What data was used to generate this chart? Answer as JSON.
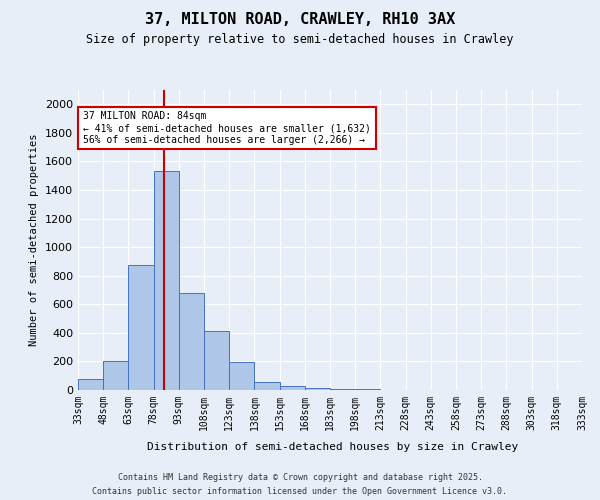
{
  "title": "37, MILTON ROAD, CRAWLEY, RH10 3AX",
  "subtitle": "Size of property relative to semi-detached houses in Crawley",
  "xlabel": "Distribution of semi-detached houses by size in Crawley",
  "ylabel": "Number of semi-detached properties",
  "bin_labels": [
    "33sqm",
    "48sqm",
    "63sqm",
    "78sqm",
    "93sqm",
    "108sqm",
    "123sqm",
    "138sqm",
    "153sqm",
    "168sqm",
    "183sqm",
    "198sqm",
    "213sqm",
    "228sqm",
    "243sqm",
    "258sqm",
    "273sqm",
    "288sqm",
    "303sqm",
    "318sqm",
    "333sqm"
  ],
  "bin_edges": [
    33,
    48,
    63,
    78,
    93,
    108,
    123,
    138,
    153,
    168,
    183,
    198,
    213,
    228,
    243,
    258,
    273,
    288,
    303,
    318,
    333
  ],
  "bar_heights": [
    75,
    200,
    875,
    1530,
    680,
    415,
    195,
    55,
    25,
    15,
    10,
    5,
    2,
    1,
    0,
    0,
    0,
    0,
    0,
    0
  ],
  "bar_color": "#aec6e8",
  "bar_edge_color": "#4472c4",
  "vline_x": 84,
  "vline_color": "#cc0000",
  "ylim": [
    0,
    2100
  ],
  "yticks": [
    0,
    200,
    400,
    600,
    800,
    1000,
    1200,
    1400,
    1600,
    1800,
    2000
  ],
  "annotation_title": "37 MILTON ROAD: 84sqm",
  "annotation_left": "← 41% of semi-detached houses are smaller (1,632)",
  "annotation_right": "56% of semi-detached houses are larger (2,266) →",
  "annotation_box_color": "#ffffff",
  "annotation_border_color": "#cc0000",
  "bg_color": "#e8eef8",
  "grid_color": "#ffffff",
  "footer1": "Contains HM Land Registry data © Crown copyright and database right 2025.",
  "footer2": "Contains public sector information licensed under the Open Government Licence v3.0."
}
